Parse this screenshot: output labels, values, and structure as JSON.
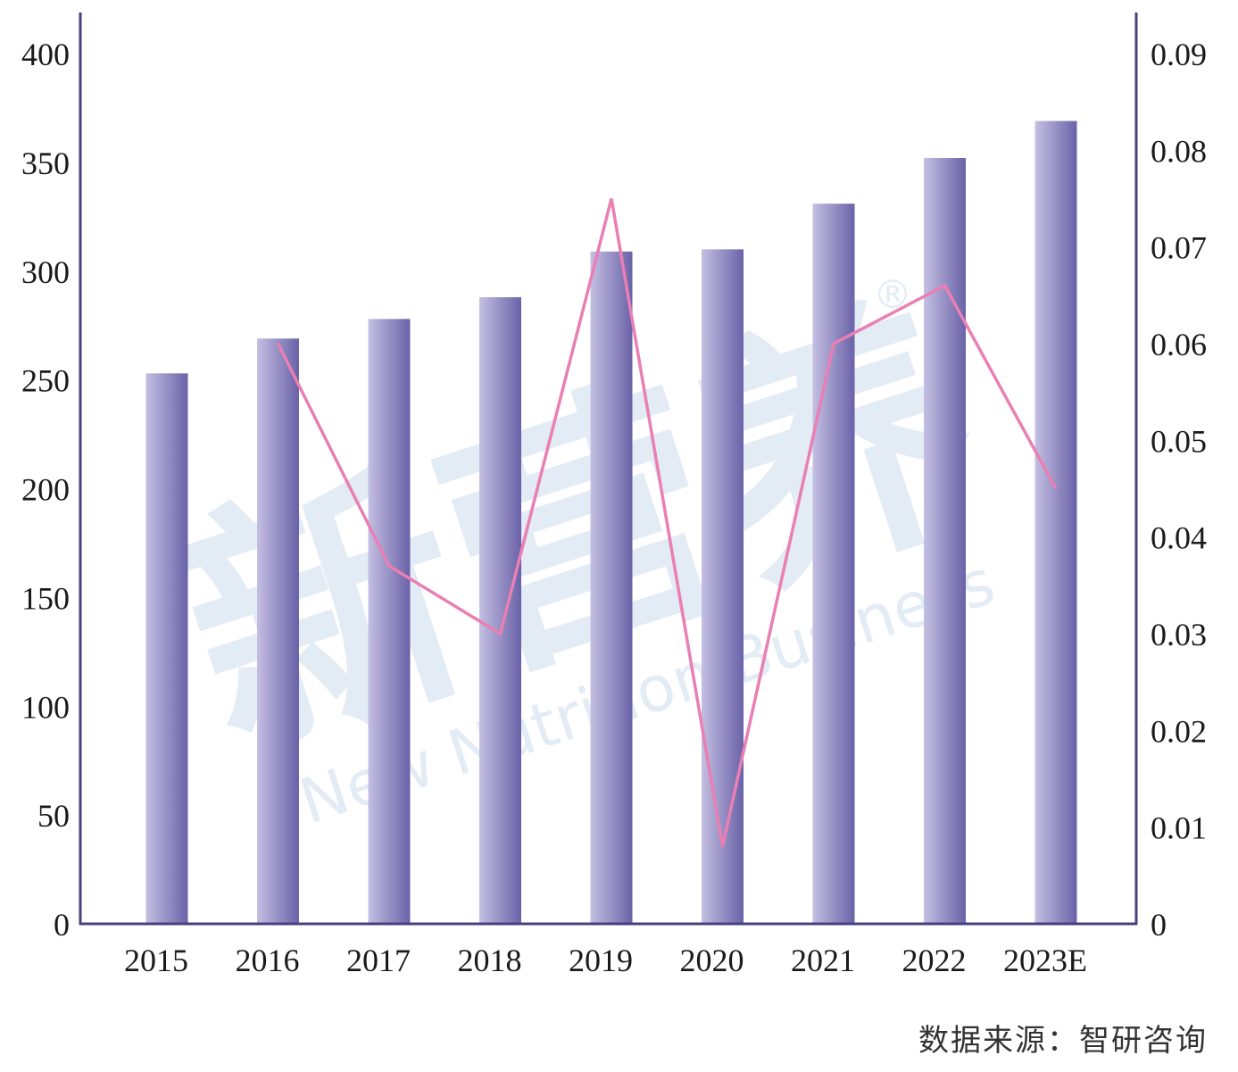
{
  "chart_data": {
    "type": "bar",
    "categories": [
      "2015",
      "2016",
      "2017",
      "2018",
      "2019",
      "2020",
      "2021",
      "2022",
      "2023E"
    ],
    "series": [
      {
        "type": "bar",
        "axis": "left",
        "values": [
          253,
          269,
          278,
          288,
          309,
          310,
          331,
          352,
          369
        ]
      },
      {
        "type": "line",
        "axis": "right",
        "values": [
          null,
          0.06,
          0.037,
          0.03,
          0.075,
          0.008,
          0.06,
          0.066,
          0.045
        ]
      }
    ],
    "y_left": {
      "lim": [
        0,
        400
      ],
      "ticks": [
        "0",
        "50",
        "100",
        "150",
        "200",
        "250",
        "300",
        "350",
        "400"
      ]
    },
    "y_right": {
      "lim": [
        0,
        0.09
      ],
      "ticks": [
        "0",
        "0.01",
        "0.02",
        "0.03",
        "0.04",
        "0.05",
        "0.06",
        "0.07",
        "0.08",
        "0.09"
      ]
    },
    "grid": false,
    "legend": "none"
  },
  "colors": {
    "bar_light": "#c4bfe2",
    "bar_dark": "#6a62a8",
    "line": "#e97fb3",
    "axis": "#4a3f80"
  },
  "watermark": {
    "chinese": "新营养",
    "english": "New Nutrition Business",
    "mark": "®"
  },
  "source": "数据来源：智研咨询"
}
